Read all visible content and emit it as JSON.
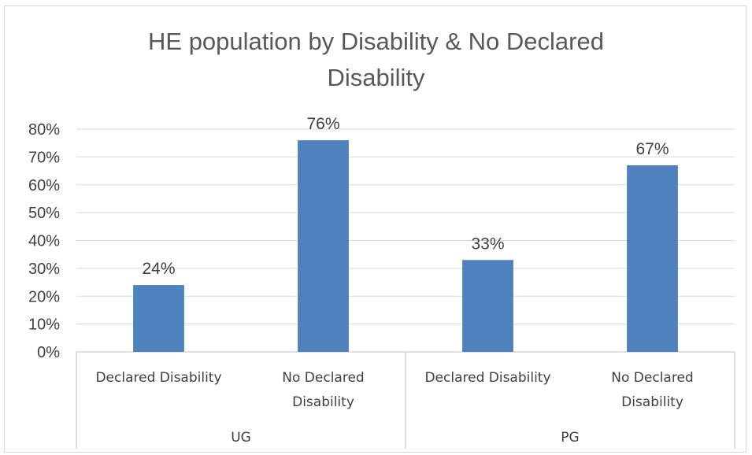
{
  "chart_data": {
    "type": "bar",
    "title": "HE population by Disability & No Declared Disability",
    "title_lines": [
      "HE population by Disability & No Declared",
      "Disability"
    ],
    "groups": [
      "UG",
      "PG"
    ],
    "categories": [
      {
        "group": "UG",
        "label": "Declared Disability",
        "label_lines": [
          "Declared Disability"
        ]
      },
      {
        "group": "UG",
        "label": "No Declared Disability",
        "label_lines": [
          "No Declared",
          "Disability"
        ]
      },
      {
        "group": "PG",
        "label": "Declared Disability",
        "label_lines": [
          "Declared Disability"
        ]
      },
      {
        "group": "PG",
        "label": "No Declared Disability",
        "label_lines": [
          "No Declared",
          "Disability"
        ]
      }
    ],
    "values": [
      24,
      76,
      33,
      67
    ],
    "data_labels": [
      "24%",
      "76%",
      "33%",
      "67%"
    ],
    "ylim": [
      0,
      80
    ],
    "y_ticks": [
      0,
      10,
      20,
      30,
      40,
      50,
      60,
      70,
      80
    ],
    "y_tick_labels": [
      "0%",
      "10%",
      "20%",
      "30%",
      "40%",
      "50%",
      "60%",
      "70%",
      "80%"
    ],
    "grid": true,
    "legend": "none",
    "bar_color": "#4f81bd",
    "grid_color": "#d9d9d9",
    "text_color": "#404040"
  }
}
